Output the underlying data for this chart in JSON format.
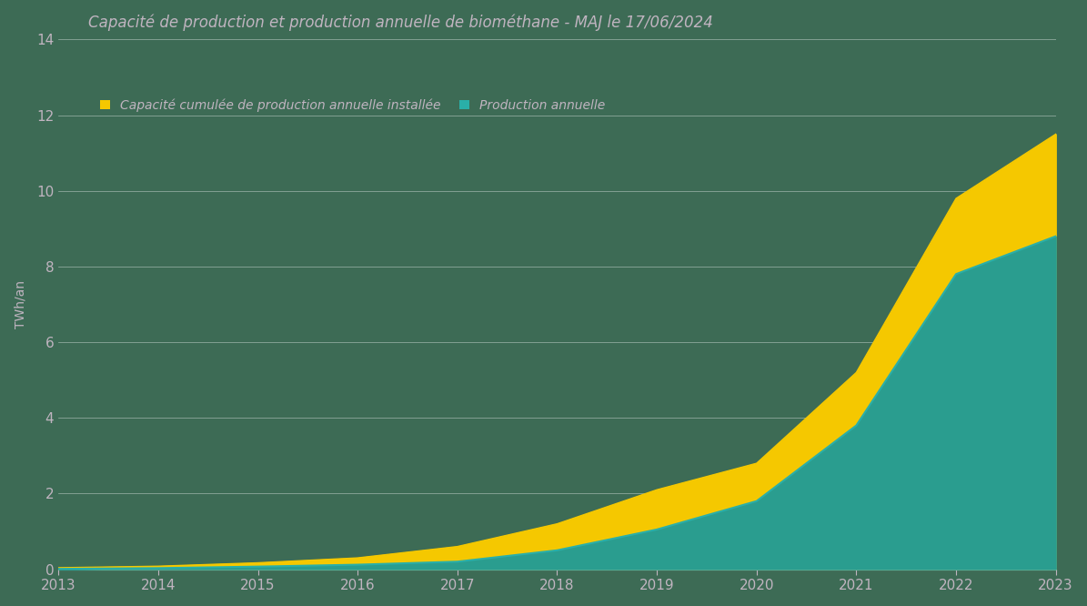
{
  "title": "Capacité de production et production annuelle de biométhane - MAJ le 17/06/2024",
  "legend_capacity": "Capacité cumulée de production annuelle installée",
  "legend_production": "Production annuelle",
  "ylabel": "TWh/an",
  "years": [
    2013,
    2014,
    2015,
    2016,
    2017,
    2018,
    2019,
    2020,
    2021,
    2022,
    2023
  ],
  "capacity": [
    0.04,
    0.08,
    0.17,
    0.3,
    0.6,
    1.2,
    2.1,
    2.8,
    5.2,
    9.8,
    11.5
  ],
  "production": [
    0.01,
    0.03,
    0.07,
    0.12,
    0.2,
    0.5,
    1.05,
    1.8,
    3.8,
    7.8,
    8.8
  ],
  "capacity_color": "#F5C800",
  "production_color": "#2AAFA8",
  "production_fill_color": "#2A9D8F",
  "background_color": "#3D6B55",
  "text_color": "#C0B4C0",
  "grid_color": "#FFFFFF",
  "ylim": [
    0,
    14
  ],
  "yticks": [
    0,
    2,
    4,
    6,
    8,
    10,
    12,
    14
  ],
  "title_fontsize": 12,
  "label_fontsize": 10,
  "tick_fontsize": 11
}
